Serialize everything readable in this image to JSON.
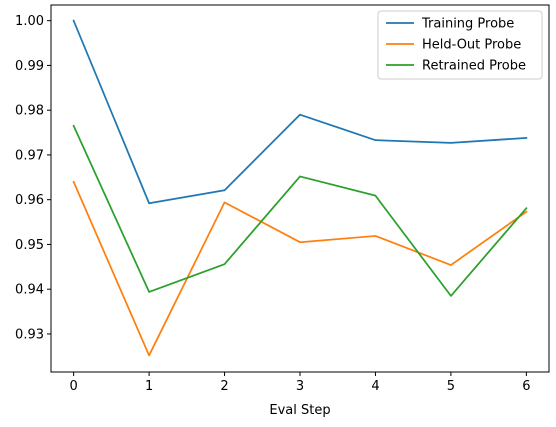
{
  "chart_data": {
    "type": "line",
    "xlabel": "Eval Step",
    "ylabel": "",
    "title": "",
    "x": [
      0,
      1,
      2,
      3,
      4,
      5,
      6
    ],
    "xlim": [
      -0.3,
      6.3
    ],
    "ylim": [
      0.9215,
      1.0035
    ],
    "xticks": [
      0,
      1,
      2,
      3,
      4,
      5,
      6
    ],
    "yticks": [
      0.93,
      0.94,
      0.95,
      0.96,
      0.97,
      0.98,
      0.99,
      1.0
    ],
    "ytick_labels": [
      "0.93",
      "0.94",
      "0.95",
      "0.96",
      "0.97",
      "0.98",
      "0.99",
      "1.00"
    ],
    "grid": false,
    "legend_position": "top-right",
    "series": [
      {
        "name": "Training Probe",
        "color": "#1f77b4",
        "values": [
          1.0,
          0.9592,
          0.9621,
          0.979,
          0.9733,
          0.9727,
          0.9738
        ]
      },
      {
        "name": "Held-Out Probe",
        "color": "#ff7f0e",
        "values": [
          0.964,
          0.9252,
          0.9594,
          0.9505,
          0.9519,
          0.9454,
          0.9573
        ]
      },
      {
        "name": "Retrained Probe",
        "color": "#2ca02c",
        "values": [
          0.9765,
          0.9394,
          0.9456,
          0.9652,
          0.9609,
          0.9385,
          0.9581
        ]
      }
    ]
  }
}
